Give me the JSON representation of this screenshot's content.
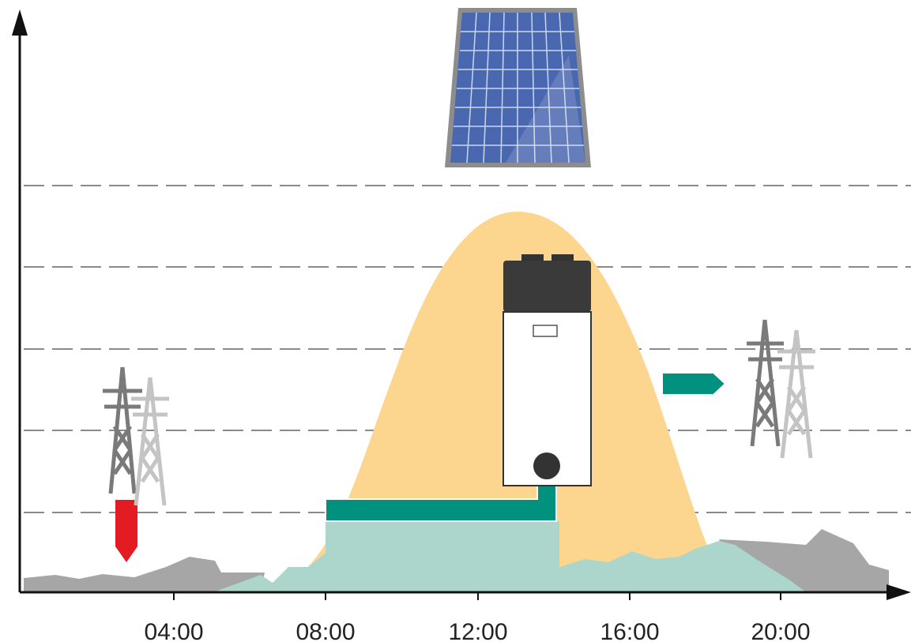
{
  "x_axis": {
    "labels": [
      "04:00",
      "08:00",
      "12:00",
      "16:00",
      "20:00"
    ]
  }
}
